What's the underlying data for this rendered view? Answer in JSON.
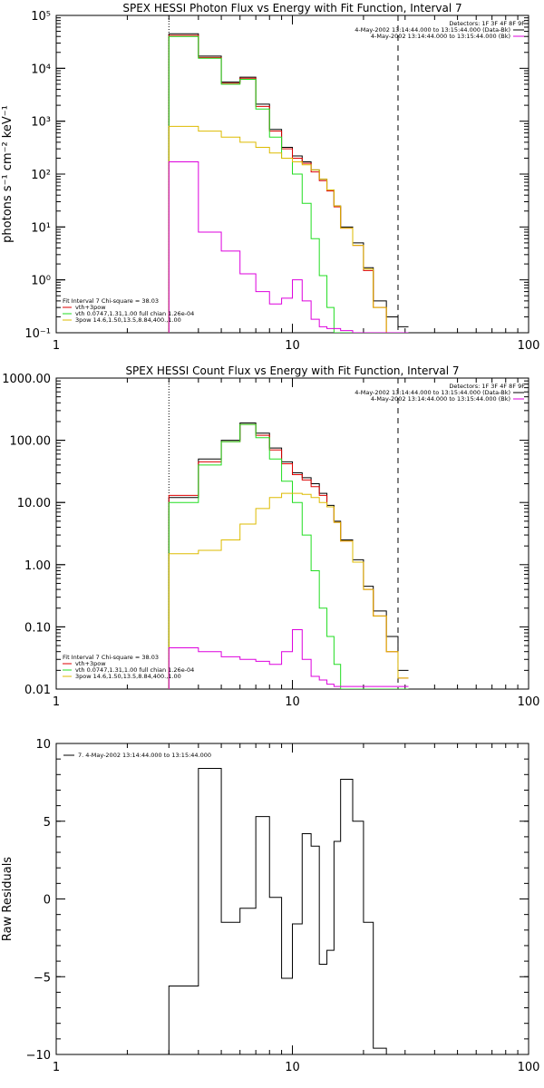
{
  "colors": {
    "black": "#000000",
    "red": "#dd0000",
    "green": "#22dd22",
    "yellow": "#ddbb00",
    "magenta": "#dd00dd",
    "background": "#ffffff"
  },
  "chart_data": [
    {
      "type": "line",
      "title": "SPEX HESSI Photon Flux vs Energy with Fit Function, Interval 7",
      "ylabel": "photons s⁻¹ cm⁻² keV⁻¹",
      "xlabel": "",
      "xscale": "log",
      "yscale": "log",
      "xlim": [
        1,
        100
      ],
      "ylim": [
        0.1,
        100000
      ],
      "xticks": [
        "1",
        "10",
        "100"
      ],
      "yticks": [
        "10⁻¹",
        "10⁰",
        "10¹",
        "10²",
        "10³",
        "10⁴",
        "10⁵"
      ],
      "header": {
        "detectors": "Detectors: 1F 3F 4F 8F 9F",
        "line1": "4-May-2002 13:14:44.000 to 13:15:44.000 (Data-Bk)",
        "line2": "4-May-2002 13:14:44.000 to 13:15:44.000 (Bk)"
      },
      "legend": {
        "title": "Fit Interval  7    Chi-square = 38.03",
        "entries": [
          "vth+3pow",
          "vth 0.0747,1.31,1.00  full chian 1.26e-04",
          "3pow 14.6,1.50,13.5,8.84,400.,1.00"
        ]
      },
      "edges": [
        3,
        4,
        5,
        6,
        7,
        8,
        9,
        10,
        11,
        12,
        13,
        14,
        15,
        16,
        18,
        20,
        22,
        25,
        28,
        31
      ],
      "series": [
        {
          "name": "Data-Bk",
          "color": "black",
          "values": [
            45000,
            17000,
            5500,
            6800,
            2100,
            700,
            320,
            220,
            170,
            120,
            80,
            50,
            25,
            10,
            5,
            1.7,
            0.4,
            0.2,
            0.13
          ]
        },
        {
          "name": "vth+3pow",
          "color": "red",
          "values": [
            42000,
            16000,
            5200,
            6500,
            1900,
            650,
            300,
            200,
            160,
            110,
            75,
            48,
            24,
            9.5,
            4.5,
            1.5,
            0.3,
            0.1,
            0.1
          ]
        },
        {
          "name": "vth",
          "color": "green",
          "values": [
            40000,
            15500,
            5000,
            6200,
            1700,
            500,
            200,
            100,
            28,
            6,
            1.2,
            0.3,
            0.1,
            0.1,
            0.1,
            0.1,
            0.1,
            0.1,
            0.1
          ]
        },
        {
          "name": "3pow",
          "color": "yellow",
          "values": [
            800,
            650,
            500,
            400,
            320,
            250,
            200,
            170,
            150,
            120,
            80,
            50,
            25,
            9.5,
            4.5,
            1.6,
            0.3,
            0.1,
            0.1
          ]
        },
        {
          "name": "Bk",
          "color": "magenta",
          "values": [
            170,
            8,
            3.5,
            1.3,
            0.6,
            0.35,
            0.45,
            1.0,
            0.4,
            0.18,
            0.13,
            0.12,
            0.12,
            0.11,
            0.1,
            0.1,
            0.1,
            0.1,
            0.1
          ]
        }
      ],
      "vlines": [
        {
          "x": 3,
          "style": "dotted"
        },
        {
          "x": 28,
          "style": "dashed"
        }
      ]
    },
    {
      "type": "line",
      "title": "SPEX HESSI Count Flux vs Energy with Fit Function, Interval 7",
      "ylabel": "",
      "xlabel": "",
      "xscale": "log",
      "yscale": "log",
      "xlim": [
        1,
        100
      ],
      "ylim": [
        0.01,
        1000
      ],
      "xticks": [
        "1",
        "10",
        "100"
      ],
      "yticks": [
        "0.01",
        "0.10",
        "1.00",
        "10.00",
        "100.00",
        "1000.00"
      ],
      "header": {
        "detectors": "Detectors: 1F 3F 4F 8F 9F",
        "line1": "4-May-2002 13:14:44.000 to 13:15:44.000 (Data-Bk)",
        "line2": "4-May-2002 13:14:44.000 to 13:15:44.000 (Bk)"
      },
      "legend": {
        "title": "Fit Interval  7    Chi-square = 38.03",
        "entries": [
          "vth+3pow",
          "vth 0.0747,1.31,1.00  full chian 1.26e-04",
          "3pow 14.6,1.50,13.5,8.84,400.,1.00"
        ]
      },
      "edges": [
        3,
        4,
        5,
        6,
        7,
        8,
        9,
        10,
        11,
        12,
        13,
        14,
        15,
        16,
        18,
        20,
        22,
        25,
        28,
        31
      ],
      "series": [
        {
          "name": "Data-Bk",
          "color": "black",
          "values": [
            12,
            50,
            100,
            190,
            130,
            75,
            45,
            30,
            25,
            20,
            14,
            9,
            5,
            2.5,
            1.2,
            0.45,
            0.18,
            0.07,
            0.02
          ]
        },
        {
          "name": "vth+3pow",
          "color": "red",
          "values": [
            13,
            45,
            95,
            180,
            120,
            70,
            42,
            28,
            23,
            18,
            13,
            8.5,
            4.8,
            2.4,
            1.1,
            0.4,
            0.15,
            0.04,
            0.015
          ]
        },
        {
          "name": "vth",
          "color": "green",
          "values": [
            10,
            40,
            95,
            180,
            110,
            50,
            22,
            10,
            3,
            0.8,
            0.2,
            0.07,
            0.025,
            0.01,
            0.01,
            0.01,
            0.01,
            0.01,
            0.01
          ]
        },
        {
          "name": "3pow",
          "color": "yellow",
          "values": [
            1.5,
            1.7,
            2.5,
            4.5,
            8,
            12,
            14,
            14,
            13.5,
            12,
            10,
            8.5,
            4.8,
            2.4,
            1.1,
            0.4,
            0.15,
            0.04,
            0.015
          ]
        },
        {
          "name": "Bk",
          "color": "magenta",
          "values": [
            0.046,
            0.04,
            0.033,
            0.03,
            0.028,
            0.025,
            0.04,
            0.09,
            0.03,
            0.016,
            0.014,
            0.012,
            0.011,
            0.011,
            0.011,
            0.011,
            0.011,
            0.011,
            0.011
          ]
        }
      ],
      "vlines": [
        {
          "x": 3,
          "style": "dotted"
        },
        {
          "x": 28,
          "style": "dashed"
        }
      ]
    },
    {
      "type": "line",
      "title": "",
      "ylabel": "Raw Residuals",
      "xlabel": "",
      "xscale": "log",
      "yscale": "linear",
      "xlim": [
        1,
        100
      ],
      "ylim": [
        -10,
        10
      ],
      "xticks": [
        "1",
        "10",
        "100"
      ],
      "yticks": [
        "−10",
        "−5",
        "0",
        "5",
        "10"
      ],
      "legend": {
        "entries": [
          "7.  4-May-2002 13:14:44.000 to 13:15:44.000"
        ]
      },
      "edges": [
        3,
        4,
        5,
        6,
        7,
        8,
        9,
        10,
        11,
        12,
        13,
        14,
        15,
        16,
        18,
        20,
        22,
        25,
        28
      ],
      "series": [
        {
          "name": "",
          "color": "black",
          "values": [
            -5.6,
            8.4,
            -1.5,
            -0.6,
            5.3,
            0.1,
            -5.1,
            -1.6,
            4.2,
            3.4,
            -4.2,
            -3.3,
            3.7,
            7.7,
            5,
            -1.5,
            -9.6,
            -10
          ]
        }
      ]
    }
  ]
}
